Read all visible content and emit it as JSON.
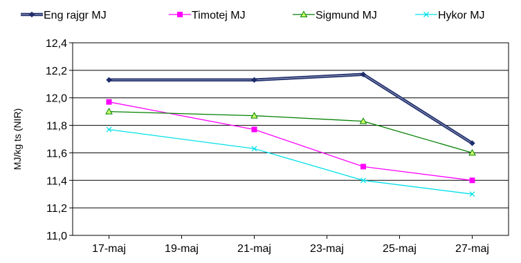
{
  "chart_data": {
    "type": "line",
    "title": "",
    "xlabel": "",
    "ylabel": "MJ/kg ts (NIR)",
    "x_ticks": [
      "17-maj",
      "19-maj",
      "21-maj",
      "23-maj",
      "25-maj",
      "27-maj"
    ],
    "x_tick_values": [
      "2000-05-17",
      "2000-05-19",
      "2000-05-21",
      "2000-05-23",
      "2000-05-25",
      "2000-05-27"
    ],
    "xlim": [
      "2000-05-16",
      "2000-05-28"
    ],
    "ylim": [
      11.0,
      12.4
    ],
    "y_ticks": [
      "11,0",
      "11,2",
      "11,4",
      "11,6",
      "11,8",
      "12,0",
      "12,2",
      "12,4"
    ],
    "y_tick_values": [
      11.0,
      11.2,
      11.4,
      11.6,
      11.8,
      12.0,
      12.2,
      12.4
    ],
    "grid": "horizontal",
    "legend_position": "top",
    "series": [
      {
        "name": "Eng rajgr MJ",
        "color": "#1f2d6b",
        "marker": "diamond",
        "x": [
          "2000-05-17",
          "2000-05-21",
          "2000-05-24",
          "2000-05-27"
        ],
        "values": [
          12.13,
          12.13,
          12.17,
          11.67
        ]
      },
      {
        "name": "Timotej MJ",
        "color": "#ff00ff",
        "marker": "square",
        "x": [
          "2000-05-17",
          "2000-05-21",
          "2000-05-24",
          "2000-05-27"
        ],
        "values": [
          11.97,
          11.77,
          11.5,
          11.4
        ]
      },
      {
        "name": "Sigmund MJ",
        "color": "#008000",
        "marker": "triangle",
        "x": [
          "2000-05-17",
          "2000-05-21",
          "2000-05-24",
          "2000-05-27"
        ],
        "values": [
          11.9,
          11.87,
          11.83,
          11.6
        ]
      },
      {
        "name": "Hykor MJ",
        "color": "#00e0e8",
        "marker": "x",
        "x": [
          "2000-05-17",
          "2000-05-21",
          "2000-05-24",
          "2000-05-27"
        ],
        "values": [
          11.77,
          11.63,
          11.4,
          11.3
        ]
      }
    ]
  }
}
